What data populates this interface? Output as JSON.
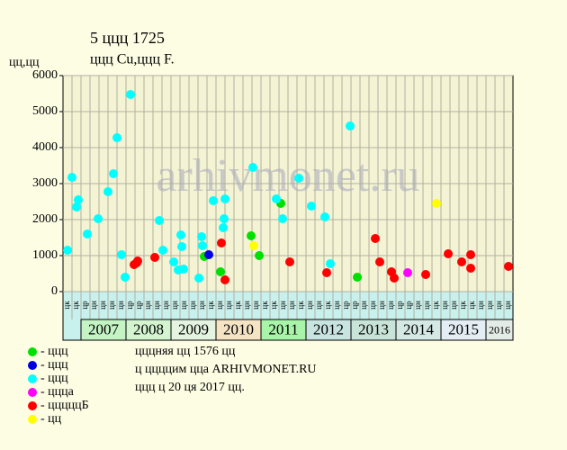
{
  "chart_data": {
    "type": "scatter",
    "title": "5 ццц 1725",
    "subtitle": "ццц Cu,ццц F.",
    "y_label": "цц,цц",
    "xlim": [
      2006.6,
      2016.6
    ],
    "ylim": [
      0,
      6000
    ],
    "yticks": [
      0,
      1000,
      2000,
      3000,
      4000,
      5000,
      6000
    ],
    "grid": true,
    "years": [
      "2007",
      "2008",
      "2009",
      "2010",
      "2011",
      "2012",
      "2013",
      "2014",
      "2015",
      "2016"
    ],
    "year_colors": [
      "#c4f4c4",
      "#d4f4d0",
      "#e4f4e0",
      "#f4e4c4",
      "#a8f4a8",
      "#c8e4e0",
      "#c8e4d8",
      "#d4e8e4",
      "#e4ecf4",
      "#e4ece8"
    ],
    "column_labels": [
      "цк",
      "цк",
      "цр",
      "цн",
      "цн",
      "цн",
      "цн",
      "цр",
      "цр",
      "цн",
      "цн",
      "цн",
      "цн",
      "цн",
      "цн",
      "цн",
      "цк",
      "цн",
      "цн",
      "цк",
      "цн",
      "цн",
      "цк",
      "цк",
      "цн",
      "цн",
      "цк",
      "цн",
      "цн",
      "цк",
      "цн",
      "цр",
      "цр",
      "цн",
      "цн",
      "цн",
      "цн",
      "цр",
      "цр",
      "цн",
      "цн",
      "цк",
      "цн",
      "цн",
      "цк",
      "цк",
      "цн",
      "цн",
      "цн",
      "цн"
    ],
    "series": [
      {
        "name": "- ццц",
        "color": "#00e000",
        "x": [
          2009.74,
          2010.1,
          2010.78,
          2010.96,
          2011.44,
          2013.14
        ],
        "values": [
          975,
          550,
          1550,
          1000,
          2450,
          400
        ]
      },
      {
        "name": "- ццц",
        "color": "#0000e0",
        "x": [
          2009.84
        ],
        "values": [
          1025
        ]
      },
      {
        "name": "- ццц",
        "color": "#00ffff",
        "x": [
          2006.7,
          2006.8,
          2006.9,
          2006.94,
          2007.14,
          2007.38,
          2007.6,
          2007.72,
          2007.8,
          2007.9,
          2007.98,
          2008.1,
          2008.74,
          2008.82,
          2009.06,
          2009.16,
          2009.22,
          2009.24,
          2009.28,
          2009.62,
          2009.68,
          2009.7,
          2009.94,
          2010.16,
          2010.18,
          2010.2,
          2010.82,
          2011.34,
          2011.48,
          2011.84,
          2012.12,
          2012.42,
          2012.54,
          2012.98
        ],
        "values": [
          1150,
          3175,
          2350,
          2550,
          1600,
          2025,
          2775,
          3275,
          4275,
          1025,
          400,
          5475,
          1975,
          1150,
          825,
          600,
          1575,
          1250,
          625,
          375,
          1525,
          1275,
          2525,
          1775,
          2025,
          2575,
          3450,
          2575,
          2025,
          3150,
          2375,
          2075,
          775,
          4600
        ]
      },
      {
        "name": "- ццца",
        "color": "#ff00ff",
        "x": [
          2014.26
        ],
        "values": [
          525
        ]
      },
      {
        "name": "- цццццБ",
        "color": "#ff0000",
        "x": [
          2008.18,
          2008.24,
          2008.26,
          2008.64,
          2010.12,
          2010.2,
          2011.64,
          2012.46,
          2013.54,
          2013.64,
          2013.9,
          2013.96,
          2014.66,
          2015.16,
          2015.46,
          2015.66,
          2015.66,
          2016.5
        ],
        "values": [
          750,
          800,
          850,
          950,
          1350,
          325,
          825,
          525,
          1475,
          825,
          550,
          375,
          475,
          1050,
          825,
          1025,
          650,
          700
        ]
      },
      {
        "name": "- цц",
        "color": "#ffff00",
        "x": [
          2010.84,
          2014.9
        ],
        "values": [
          1275,
          2450
        ]
      }
    ],
    "notes": [
      "цццняя цц 1576 цц",
      "ц ццццим цца ARHIVMONET.RU",
      "ццц ц 20 ця 2017 цц."
    ],
    "watermark": "arhivmonet.ru"
  }
}
